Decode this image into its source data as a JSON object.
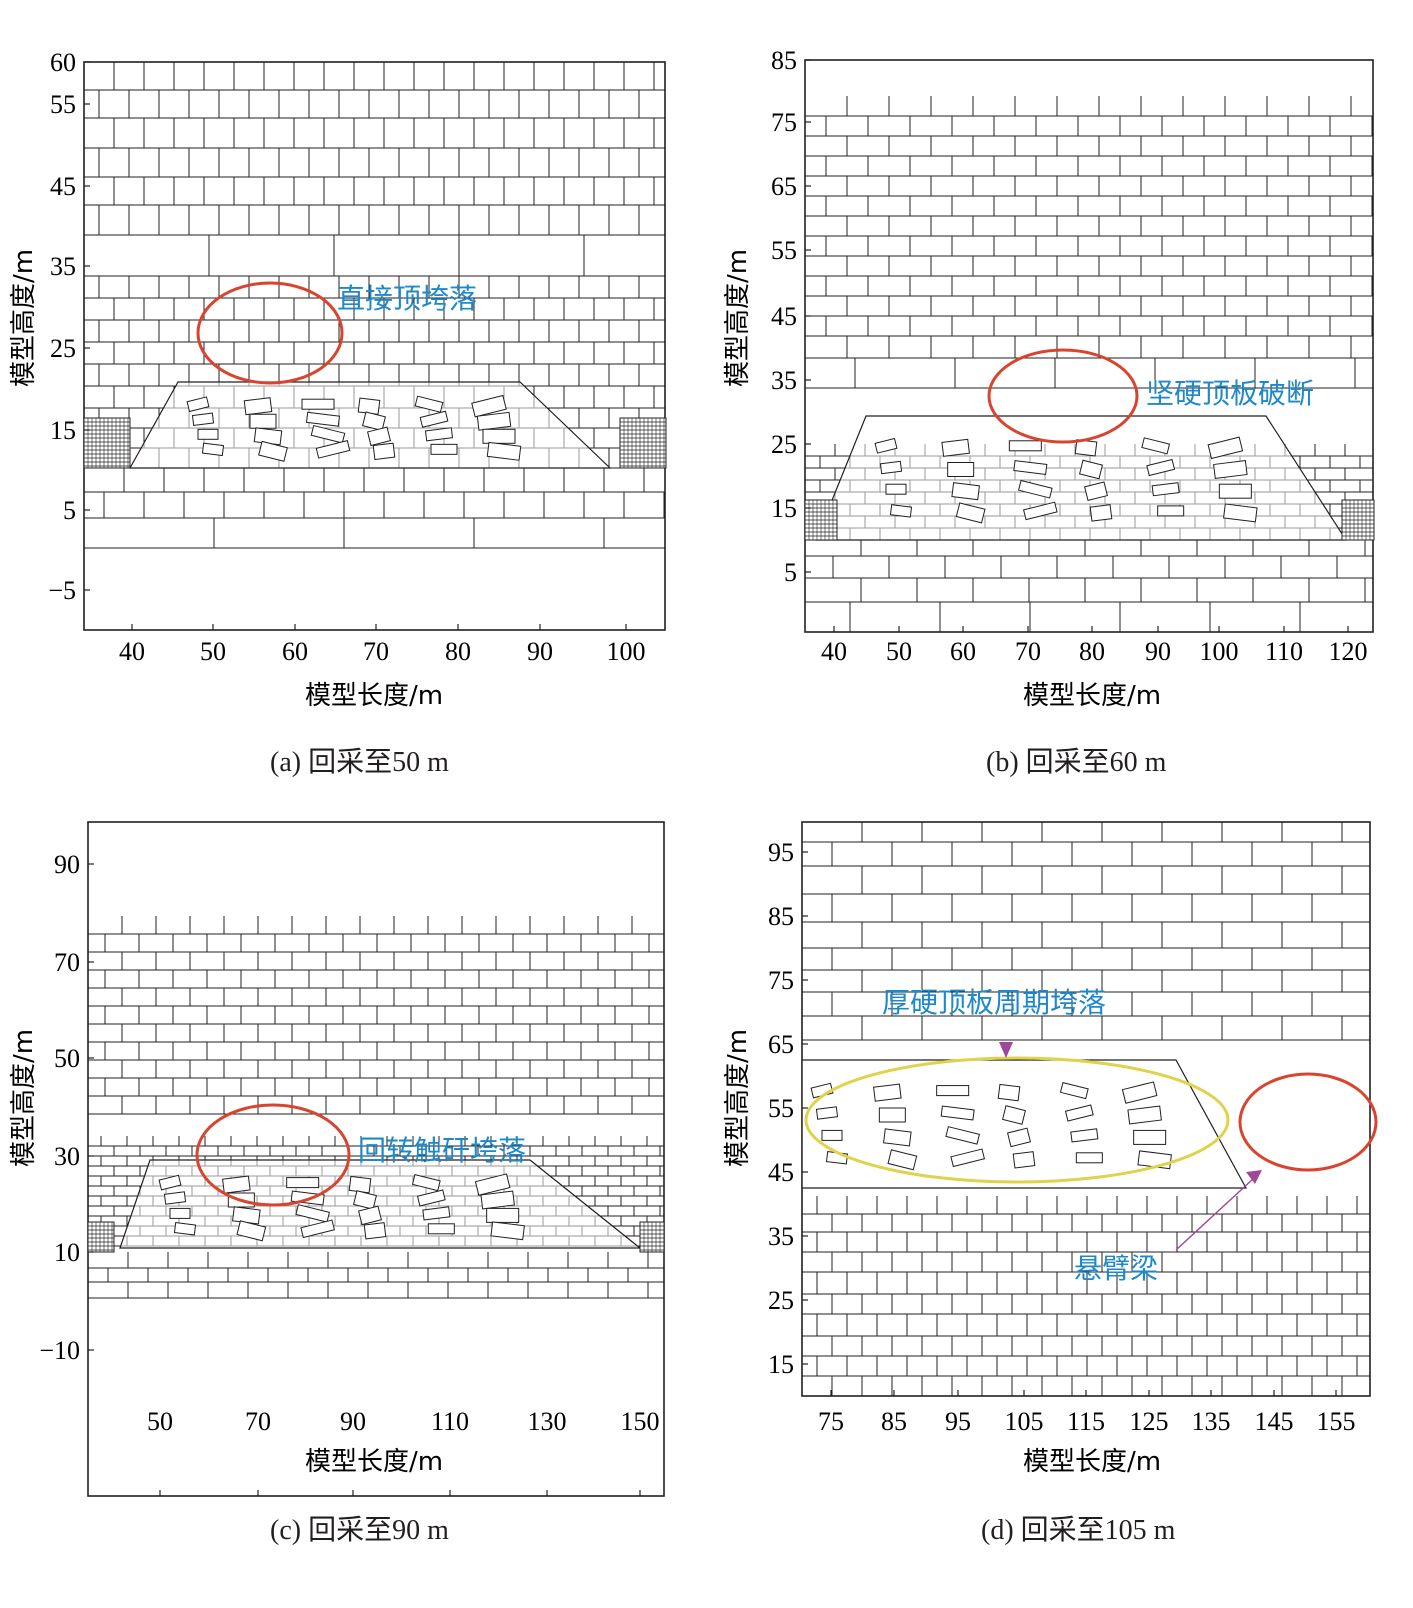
{
  "figure": {
    "panels": [
      {
        "id": "a",
        "caption": "(a) 回采至50 m",
        "xlabel": "模型长度/m",
        "ylabel": "模型高度/m",
        "xticks": [
          "40",
          "50",
          "60",
          "70",
          "80",
          "90",
          "100"
        ],
        "yticks": [
          "60",
          "55",
          "45",
          "35",
          "25",
          "15",
          "5",
          "−5"
        ],
        "annotations": [
          {
            "text": "直接顶垮落",
            "shape": "ellipse",
            "color": "#d9442e",
            "text_color": "#1e88c8"
          }
        ]
      },
      {
        "id": "b",
        "caption": "(b) 回采至60 m",
        "xlabel": "模型长度/m",
        "ylabel": "模型高度/m",
        "xticks": [
          "40",
          "50",
          "60",
          "70",
          "80",
          "90",
          "100",
          "110",
          "120"
        ],
        "yticks": [
          "85",
          "75",
          "65",
          "55",
          "45",
          "35",
          "25",
          "15",
          "5"
        ],
        "annotations": [
          {
            "text": "坚硬顶板破断",
            "shape": "ellipse",
            "color": "#d9442e",
            "text_color": "#1e88c8"
          }
        ]
      },
      {
        "id": "c",
        "caption": "(c) 回采至90 m",
        "xlabel": "模型长度/m",
        "ylabel": "模型高度/m",
        "xticks": [
          "50",
          "70",
          "90",
          "110",
          "130",
          "150"
        ],
        "yticks": [
          "90",
          "70",
          "50",
          "30",
          "10",
          "−10"
        ],
        "annotations": [
          {
            "text": "回转触矸垮落",
            "shape": "ellipse",
            "color": "#d9442e",
            "text_color": "#1e88c8"
          }
        ]
      },
      {
        "id": "d",
        "caption": "(d) 回采至105 m",
        "xlabel": "模型长度/m",
        "ylabel": "模型高度/m",
        "xticks": [
          "75",
          "85",
          "95",
          "105",
          "115",
          "125",
          "135",
          "145",
          "155"
        ],
        "yticks": [
          "95",
          "85",
          "75",
          "65",
          "55",
          "45",
          "35",
          "25",
          "15"
        ],
        "annotations": [
          {
            "text": "厚硬顶板周期垮落",
            "shape": "ellipse",
            "color": "#e0d24a",
            "text_color": "#1e88c8"
          },
          {
            "text": "悬臂梁",
            "shape": "ellipse",
            "color": "#d9442e",
            "text_color": "#1e88c8"
          }
        ]
      }
    ],
    "colors": {
      "line": "#231f20",
      "red_mark": "#d9442e",
      "yellow_mark": "#e0d24a",
      "label_blue": "#1e88c8",
      "arrow": "#a0479c"
    }
  }
}
